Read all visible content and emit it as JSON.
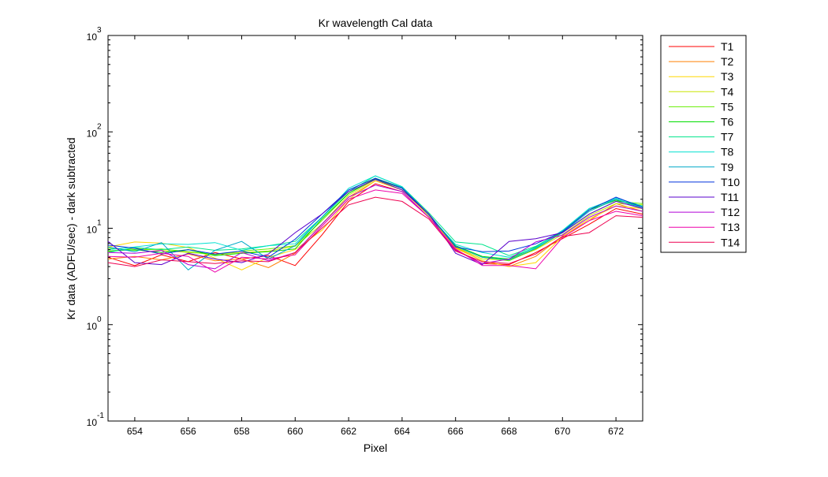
{
  "chart_data": {
    "type": "line",
    "title": "Kr wavelength Cal data",
    "xlabel": "Pixel",
    "ylabel": "Kr data (ADFU/sec) - dark subtracted",
    "xlim": [
      653,
      673
    ],
    "ylim": [
      0.1,
      1000
    ],
    "y_scale": "log",
    "grid": false,
    "legend_position": "outside-right",
    "x_ticks": [
      654,
      656,
      658,
      660,
      662,
      664,
      666,
      668,
      670,
      672
    ],
    "x_tick_labels": [
      "654",
      "656",
      "658",
      "660",
      "662",
      "664",
      "666",
      "668",
      "670",
      "672"
    ],
    "y_ticks": [
      {
        "value": 0.1,
        "base": "10",
        "exp": "-1"
      },
      {
        "value": 1,
        "base": "10",
        "exp": "0"
      },
      {
        "value": 10,
        "base": "10",
        "exp": "1"
      },
      {
        "value": 100,
        "base": "10",
        "exp": "2"
      },
      {
        "value": 1000,
        "base": "10",
        "exp": "3"
      }
    ],
    "x": [
      653,
      654,
      655,
      656,
      657,
      658,
      659,
      660,
      661,
      662,
      663,
      664,
      665,
      666,
      667,
      668,
      669,
      670,
      671,
      672,
      673
    ],
    "series": [
      {
        "name": "T1",
        "color": "#ff0000",
        "values": [
          5.0,
          4.1,
          5.3,
          4.5,
          5.6,
          4.8,
          5.2,
          4.1,
          8.5,
          19.0,
          29.0,
          24.0,
          13.0,
          6.0,
          4.3,
          4.2,
          5.6,
          7.8,
          11.0,
          16.0,
          14.0
        ]
      },
      {
        "name": "T2",
        "color": "#ff7f00",
        "values": [
          4.8,
          5.1,
          4.7,
          5.4,
          4.6,
          4.8,
          3.9,
          5.5,
          11.0,
          21.0,
          31.0,
          25.0,
          14.0,
          6.3,
          4.6,
          4.0,
          5.1,
          8.3,
          12.0,
          18.0,
          15.0
        ]
      },
      {
        "name": "T3",
        "color": "#ffd700",
        "values": [
          6.4,
          7.2,
          7.0,
          6.3,
          4.9,
          3.7,
          5.0,
          6.0,
          9.5,
          20.0,
          31.0,
          25.0,
          13.5,
          6.2,
          4.6,
          4.0,
          4.4,
          8.2,
          12.5,
          17.0,
          16.0
        ]
      },
      {
        "name": "T4",
        "color": "#c8e600",
        "values": [
          5.7,
          6.2,
          5.9,
          5.6,
          5.4,
          5.6,
          5.8,
          6.5,
          11.0,
          22.0,
          32.0,
          26.0,
          13.5,
          6.4,
          4.8,
          4.7,
          6.0,
          8.6,
          13.5,
          18.0,
          17.5
        ]
      },
      {
        "name": "T5",
        "color": "#66ee00",
        "values": [
          6.2,
          5.9,
          6.1,
          5.7,
          5.3,
          5.8,
          6.1,
          6.6,
          12.0,
          23.0,
          33.0,
          26.5,
          14.0,
          6.5,
          5.0,
          4.6,
          6.1,
          9.0,
          14.0,
          19.0,
          18.0
        ]
      },
      {
        "name": "T6",
        "color": "#00dd00",
        "values": [
          5.8,
          6.0,
          5.6,
          6.0,
          5.2,
          5.5,
          5.7,
          6.1,
          12.5,
          23.0,
          32.5,
          26.0,
          13.8,
          6.6,
          5.1,
          4.8,
          6.4,
          9.2,
          15.5,
          19.5,
          17.0
        ]
      },
      {
        "name": "T7",
        "color": "#00e58c",
        "values": [
          5.6,
          6.3,
          6.0,
          6.4,
          5.9,
          6.1,
          6.6,
          7.3,
          13.0,
          24.0,
          35.0,
          27.0,
          14.5,
          7.2,
          6.8,
          5.2,
          6.5,
          9.4,
          16.0,
          20.0,
          16.5
        ]
      },
      {
        "name": "T8",
        "color": "#00e0d0",
        "values": [
          6.0,
          6.4,
          6.9,
          6.8,
          7.1,
          5.9,
          6.6,
          6.9,
          13.0,
          26.0,
          35.0,
          27.0,
          13.7,
          6.8,
          5.6,
          5.0,
          6.3,
          9.5,
          16.0,
          20.5,
          17.0
        ]
      },
      {
        "name": "T9",
        "color": "#00a8c8",
        "values": [
          6.4,
          5.7,
          7.1,
          3.7,
          5.9,
          7.3,
          4.8,
          6.6,
          13.0,
          25.0,
          33.0,
          26.5,
          14.0,
          6.5,
          5.0,
          4.7,
          6.2,
          9.0,
          15.0,
          20.0,
          16.0
        ]
      },
      {
        "name": "T10",
        "color": "#0033dd",
        "values": [
          6.7,
          6.2,
          5.4,
          6.0,
          5.4,
          5.8,
          5.0,
          7.7,
          14.0,
          25.0,
          33.0,
          26.0,
          14.0,
          6.4,
          5.7,
          5.8,
          6.9,
          9.2,
          15.5,
          21.0,
          16.5
        ]
      },
      {
        "name": "T11",
        "color": "#5a00cc",
        "values": [
          7.3,
          4.4,
          4.2,
          5.5,
          4.8,
          4.4,
          5.4,
          9.0,
          14.0,
          24.0,
          32.0,
          25.0,
          14.0,
          5.5,
          4.2,
          7.3,
          7.8,
          9.0,
          14.0,
          19.0,
          16.0
        ]
      },
      {
        "name": "T12",
        "color": "#b000d8",
        "values": [
          5.6,
          5.5,
          5.9,
          4.2,
          3.8,
          5.6,
          4.6,
          5.6,
          11.0,
          21.0,
          28.0,
          24.0,
          13.0,
          5.9,
          4.3,
          4.8,
          7.2,
          8.5,
          13.0,
          17.0,
          15.0
        ]
      },
      {
        "name": "T13",
        "color": "#ee00aa",
        "values": [
          5.1,
          5.0,
          5.5,
          5.1,
          3.5,
          5.0,
          4.8,
          5.3,
          10.5,
          20.0,
          25.0,
          23.0,
          13.0,
          6.1,
          4.1,
          4.1,
          3.8,
          8.0,
          12.0,
          15.0,
          13.5
        ]
      },
      {
        "name": "T14",
        "color": "#ee0050",
        "values": [
          4.4,
          4.0,
          4.7,
          4.5,
          4.3,
          4.6,
          4.5,
          5.6,
          10.0,
          17.5,
          21.0,
          19.0,
          12.5,
          5.8,
          4.5,
          4.3,
          5.4,
          8.2,
          9.0,
          13.5,
          13.0
        ]
      }
    ]
  }
}
